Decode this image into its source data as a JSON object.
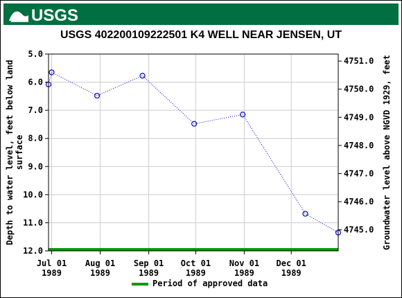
{
  "header": {
    "logo_text": "USGS",
    "title": "USGS 402200109222501 K4 WELL NEAR JENSEN, UT"
  },
  "colors": {
    "banner": "#006f41",
    "series": "#0000cc",
    "approved": "#009900",
    "grid": "#cccccc"
  },
  "chart_data": {
    "type": "line",
    "ylabel_left": "Depth to water level, feet below land surface",
    "ylabel_right": "Groundwater level above NGVD 1929, feet",
    "left_axis": {
      "reversed": true,
      "ylim": [
        5.0,
        12.0
      ],
      "ticks": [
        "5.0",
        "6.0",
        "7.0",
        "8.0",
        "9.0",
        "10.0",
        "11.0",
        "12.0"
      ]
    },
    "right_axis": {
      "ticks": [
        "4751.0",
        "4750.0",
        "4749.0",
        "4748.0",
        "4747.0",
        "4746.0",
        "4745.0"
      ]
    },
    "x_ticks": [
      {
        "line1": "Jul 01",
        "line2": "1989"
      },
      {
        "line1": "Aug 01",
        "line2": "1989"
      },
      {
        "line1": "Sep 01",
        "line2": "1989"
      },
      {
        "line1": "Oct 01",
        "line2": "1989"
      },
      {
        "line1": "Nov 01",
        "line2": "1989"
      },
      {
        "line1": "Dec 01",
        "line2": "1989"
      }
    ],
    "xlim": [
      "1989-06-29",
      "1989-12-31"
    ],
    "grid": true,
    "series": [
      {
        "marker": "open-circle",
        "line_style": "dotted",
        "points": [
          {
            "date": "1989-06-29",
            "depth": 6.08
          },
          {
            "date": "1989-07-01",
            "depth": 5.65
          },
          {
            "date": "1989-07-30",
            "depth": 6.48
          },
          {
            "date": "1989-08-28",
            "depth": 5.77
          },
          {
            "date": "1989-09-30",
            "depth": 7.48
          },
          {
            "date": "1989-10-31",
            "depth": 7.15
          },
          {
            "date": "1989-12-10",
            "depth": 10.68
          },
          {
            "date": "1989-12-31",
            "depth": 11.35
          }
        ]
      }
    ],
    "approved_period": {
      "start": "1989-06-29",
      "end": "1989-12-31"
    },
    "legend": {
      "label": "Period of approved data",
      "placement": "bottom-center"
    }
  }
}
